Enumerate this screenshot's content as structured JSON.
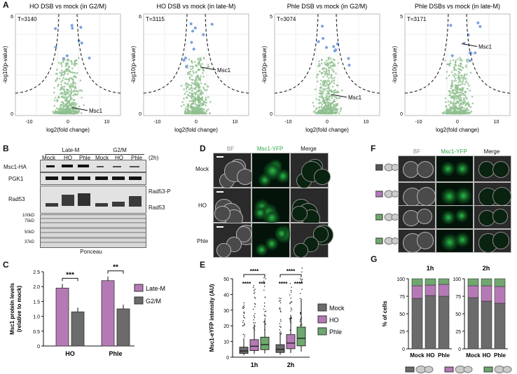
{
  "panel_labels": {
    "a": "A",
    "b": "B",
    "c": "C",
    "d": "D",
    "e": "E",
    "f": "F",
    "g": "G"
  },
  "colors": {
    "volcano_point": "#8fbf8f",
    "volcano_hit": "#7aa0e0",
    "late_m": "#b57ab5",
    "g2m": "#6b6b6b",
    "mock": "#6b6b6b",
    "ho": "#b57ab5",
    "phle": "#6fa76f"
  },
  "volcano": {
    "xlabel": "log2(fold change)",
    "ylabel": "-log10(p-value)",
    "plots": [
      {
        "title": "HO DSB vs mock (in G2/M)",
        "t": "T=3140",
        "annot": "Msc1",
        "ymax": "6",
        "ticks": [
          "-10",
          "0",
          "10"
        ],
        "yticks": [
          "0",
          "3",
          "6"
        ]
      },
      {
        "title": "HO DSB vs mock (in late-M)",
        "t": "T=3115",
        "annot": "Msc1",
        "ymax": "6",
        "ticks": [
          "-10",
          "0",
          "10"
        ],
        "yticks": [
          "0",
          "3",
          "6"
        ]
      },
      {
        "title": "Phle DSB vs mock (in G2/M)",
        "t": "T=3074",
        "annot": "Msc1",
        "ymax": "5",
        "ticks": [
          "-10",
          "0",
          "10"
        ],
        "yticks": [
          "0",
          "5"
        ]
      },
      {
        "title": "Phle DSBs vs mock (in late-M)",
        "t": "T=3171",
        "annot": "Msc1",
        "ymax": "5",
        "ticks": [
          "-10",
          "0",
          "10"
        ],
        "yticks": [
          "0",
          "5"
        ]
      }
    ]
  },
  "blot": {
    "groups": [
      "Late-M",
      "G2/M"
    ],
    "lanes": [
      "Mock",
      "HO",
      "Phle",
      "Mock",
      "HO",
      "Phle"
    ],
    "time": "(2h)",
    "rows": [
      "Msc1-HA",
      "PGK1",
      "Rad53"
    ],
    "rad53p": "Rad53-P",
    "rad53": "Rad53",
    "markers": [
      "100kD",
      "75kD",
      "50kD",
      "37kD"
    ],
    "ponceau": "Ponceau"
  },
  "chart_data": [
    {
      "panel": "C",
      "type": "bar",
      "categories": [
        "HO",
        "Phle"
      ],
      "series": [
        {
          "name": "Late-M",
          "values": [
            1.95,
            2.2
          ]
        },
        {
          "name": "G2/M",
          "values": [
            1.15,
            1.25
          ]
        }
      ],
      "ylabel": "Msc1 protein levels (relative to mock)",
      "ylim": [
        0,
        2.5
      ],
      "yticks": [
        "0",
        "0.5",
        "1.0",
        "1.5",
        "2.0",
        "2.5"
      ],
      "sig": [
        "***",
        "**"
      ]
    },
    {
      "panel": "E",
      "type": "box",
      "categories": [
        "1h",
        "2h"
      ],
      "series": [
        {
          "name": "Mock",
          "medians": [
            4,
            5
          ]
        },
        {
          "name": "HO",
          "medians": [
            7,
            9
          ]
        },
        {
          "name": "Phle",
          "medians": [
            8,
            12
          ]
        }
      ],
      "ylabel": "Msc1-eYFP intensity (AU)",
      "ylim": [
        0,
        50
      ],
      "yticks": [
        "0",
        "10",
        "20",
        "30",
        "40",
        "50"
      ],
      "sig": [
        "****",
        "****",
        "***",
        "****",
        "****",
        "****"
      ]
    },
    {
      "panel": "G",
      "type": "bar",
      "stacked": true,
      "titles": [
        "1h",
        "2h"
      ],
      "categories": [
        "Mock",
        "HO",
        "Phle"
      ],
      "series": [
        {
          "name": "dark",
          "values_1h": [
            72,
            76,
            75
          ],
          "values_2h": [
            73,
            68,
            65
          ]
        },
        {
          "name": "purple",
          "values_1h": [
            18,
            15,
            17
          ],
          "values_2h": [
            17,
            22,
            24
          ]
        },
        {
          "name": "green",
          "values_1h": [
            10,
            9,
            8
          ],
          "values_2h": [
            10,
            10,
            11
          ]
        }
      ],
      "ylabel": "% of cells",
      "ylim": [
        0,
        100
      ],
      "yticks": [
        "0",
        "25",
        "50",
        "75",
        "100"
      ]
    }
  ],
  "micro_d": {
    "columns": [
      "BF",
      "Msc1-YFP",
      "Merge"
    ],
    "rows": [
      "Mock",
      "HO",
      "Phle"
    ]
  },
  "micro_f": {
    "columns": [
      "BF",
      "Msc1-YFP",
      "Merge"
    ]
  }
}
